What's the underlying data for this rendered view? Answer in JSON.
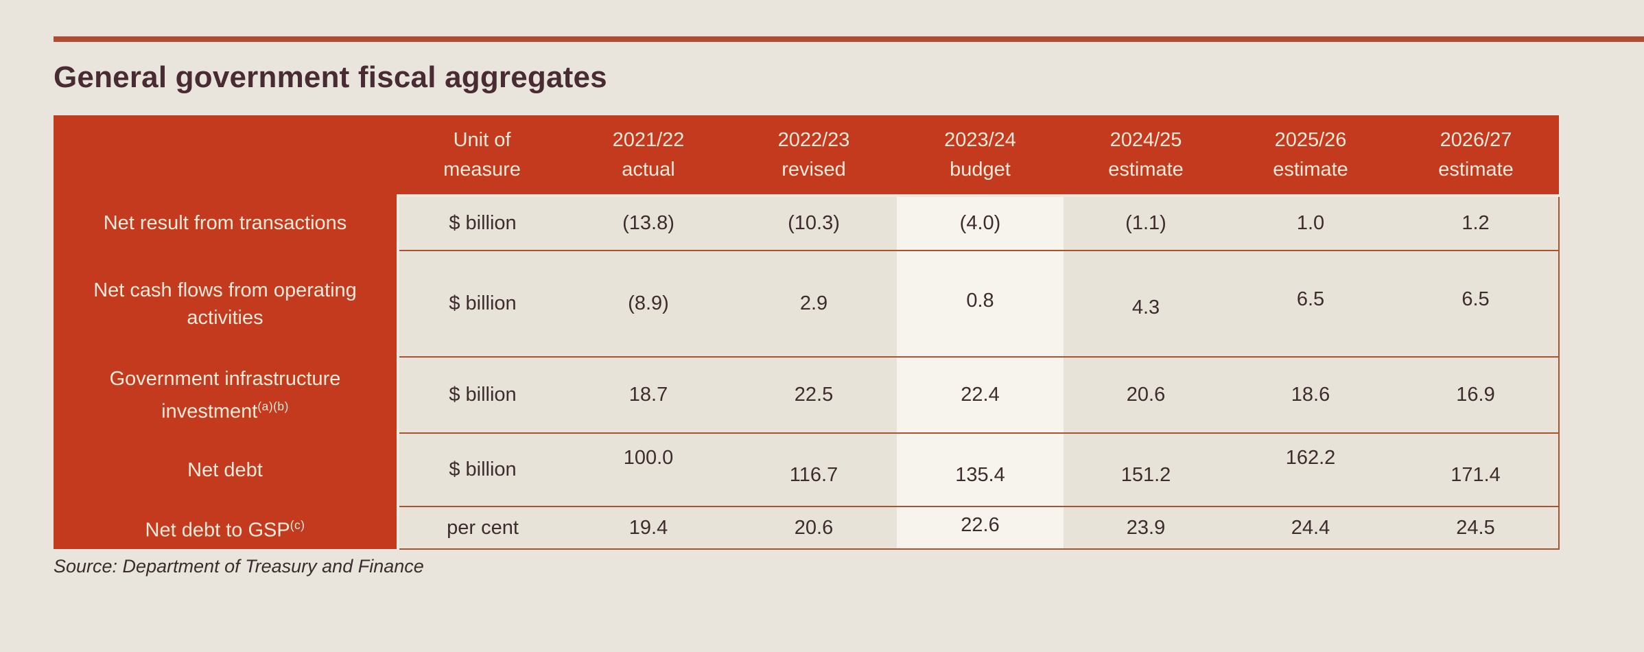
{
  "title": "General government fiscal aggregates",
  "source": "Source: Department of Treasury and Finance",
  "colors": {
    "page_bg": "#e9e5dc",
    "rule": "#b14a32",
    "title_text": "#492b34",
    "table_red": "#c43a1e",
    "header_text": "#f3ead9",
    "cell_bg": "#e7e3d9",
    "highlight_bg": "#f7f4ed",
    "cell_text": "#3e2b2d",
    "row_border": "#ab5233",
    "separator": "#efeadf",
    "source_text": "#3a2b2d"
  },
  "table": {
    "columns": [
      {
        "line1": "",
        "line2": ""
      },
      {
        "line1": "Unit of",
        "line2": "measure"
      },
      {
        "line1": "2021/22",
        "line2": "actual"
      },
      {
        "line1": "2022/23",
        "line2": "revised"
      },
      {
        "line1": "2023/24",
        "line2": "budget"
      },
      {
        "line1": "2024/25",
        "line2": "estimate"
      },
      {
        "line1": "2025/26",
        "line2": "estimate"
      },
      {
        "line1": "2026/27",
        "line2": "estimate"
      }
    ],
    "highlight_column_index": 4,
    "rows": [
      {
        "label": "Net result from transactions",
        "sup": "",
        "unit": "$ billion",
        "values": [
          "(13.8)",
          "(10.3)",
          "(4.0)",
          "(1.1)",
          "1.0",
          "1.2"
        ]
      },
      {
        "label": "Net cash flows from operating activities",
        "sup": "",
        "unit": "$ billion",
        "values": [
          "(8.9)",
          "2.9",
          "0.8",
          "4.3",
          "6.5",
          "6.5"
        ]
      },
      {
        "label": "Government infrastructure investment",
        "sup": "(a)(b)",
        "unit": "$ billion",
        "values": [
          "18.7",
          "22.5",
          "22.4",
          "20.6",
          "18.6",
          "16.9"
        ]
      },
      {
        "label": "Net debt",
        "sup": "",
        "unit": "$ billion",
        "values": [
          "100.0",
          "116.7",
          "135.4",
          "151.2",
          "162.2",
          "171.4"
        ]
      },
      {
        "label": "Net debt to GSP",
        "sup": "(c)",
        "unit": "per cent",
        "values": [
          "19.4",
          "20.6",
          "22.6",
          "23.9",
          "24.4",
          "24.5"
        ]
      }
    ]
  }
}
